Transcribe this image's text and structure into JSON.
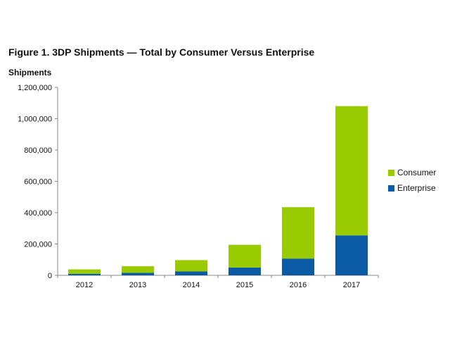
{
  "figure_title": "Figure 1. 3DP Shipments — Total by Consumer Versus Enterprise",
  "colors": {
    "consumer": "#99cc00",
    "enterprise": "#0a5aa6",
    "axis": "#888888"
  },
  "chart_data": {
    "type": "bar",
    "stacked": true,
    "title": "Figure 1. 3DP Shipments — Total by Consumer Versus Enterprise",
    "xlabel": "",
    "ylabel": "Shipments",
    "categories": [
      "2012",
      "2013",
      "2014",
      "2015",
      "2016",
      "2017"
    ],
    "series": [
      {
        "name": "Enterprise",
        "values": [
          10000,
          16000,
          25000,
          50000,
          107000,
          255000
        ]
      },
      {
        "name": "Consumer",
        "values": [
          28000,
          42000,
          72000,
          145000,
          328000,
          825000
        ]
      }
    ],
    "ylim": [
      0,
      1200000
    ],
    "yticks": [
      0,
      200000,
      400000,
      600000,
      800000,
      1000000,
      1200000
    ],
    "ytick_labels": [
      "0",
      "200,000",
      "400,000",
      "600,000",
      "800,000",
      "1,000,000",
      "1,200,000"
    ],
    "legend": {
      "position": "right",
      "entries": [
        "Consumer",
        "Enterprise"
      ]
    },
    "grid": false
  }
}
